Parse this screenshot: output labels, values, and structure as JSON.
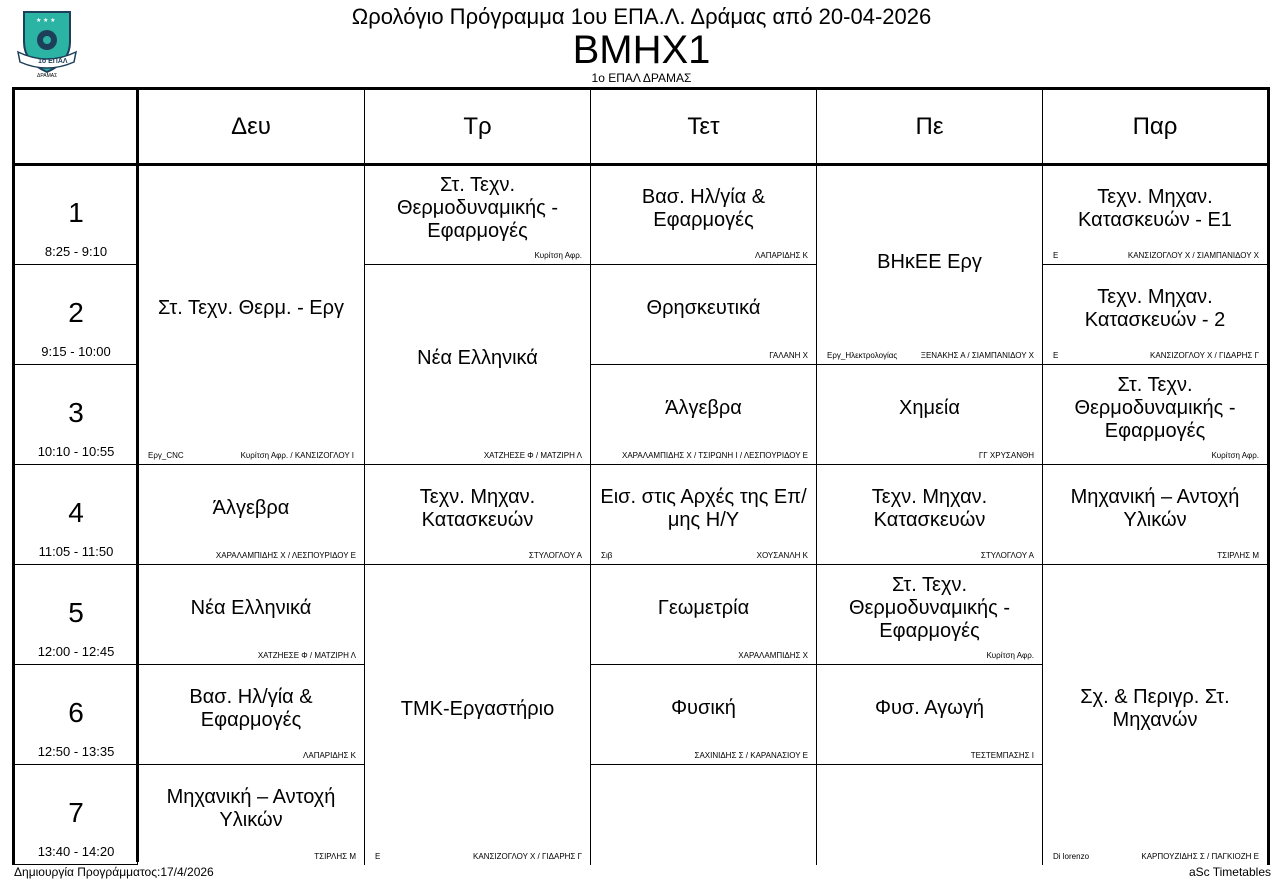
{
  "header": {
    "title": "Ωρολόγιο Πρόγραμμα 1ου ΕΠΑ.Λ. Δράμας από 20-04-2026",
    "class_name": "BMHX1",
    "school": "1ο ΕΠΑΛ ΔΡΑΜΑΣ",
    "logo_text": "1ο ΕΠΑΛ ΔΡΑΜΑΣ",
    "logo_colors": {
      "shield": "#2bb3a3",
      "dark": "#1d3f5a"
    }
  },
  "days": [
    "Δευ",
    "Τρ",
    "Τετ",
    "Πε",
    "Παρ"
  ],
  "periods": [
    {
      "num": "1",
      "time": "8:25 - 9:10"
    },
    {
      "num": "2",
      "time": "9:15 - 10:00"
    },
    {
      "num": "3",
      "time": "10:10 - 10:55"
    },
    {
      "num": "4",
      "time": "11:05 - 11:50"
    },
    {
      "num": "5",
      "time": "12:00 - 12:45"
    },
    {
      "num": "6",
      "time": "12:50 - 13:35"
    },
    {
      "num": "7",
      "time": "13:40 - 14:20"
    }
  ],
  "lessons": [
    {
      "day": 0,
      "period": 1,
      "span": 3,
      "subject": "Στ. Τεχν. Θερμ. - Εργ",
      "room": "Εργ_CNC",
      "teacher": "Κυρίτση Αφρ. / ΚΑΝΣΙΖΟΓΛΟΥ Ι"
    },
    {
      "day": 0,
      "period": 4,
      "span": 1,
      "subject": "Άλγεβρα",
      "room": "",
      "teacher": "ΧΑΡΑΛΑΜΠΙΔΗΣ Χ / ΛΕΣΠΟΥΡΙΔΟΥ Ε"
    },
    {
      "day": 0,
      "period": 5,
      "span": 1,
      "subject": "Νέα Ελληνικά",
      "room": "",
      "teacher": "ΧΑΤΖΗΕΣΕ Φ / ΜΑΤΖΙΡΗ Λ"
    },
    {
      "day": 0,
      "period": 6,
      "span": 1,
      "subject": "Βασ. Ηλ/γία & Εφαρμογές",
      "room": "",
      "teacher": "ΛΑΠΑΡΙΔΗΣ Κ"
    },
    {
      "day": 0,
      "period": 7,
      "span": 1,
      "subject": "Μηχανική – Αντοχή Υλικών",
      "room": "",
      "teacher": "ΤΣΙΡΛΗΣ Μ"
    },
    {
      "day": 1,
      "period": 1,
      "span": 1,
      "subject": "Στ. Τεχν. Θερμοδυναμικής - Εφαρμογές",
      "room": "",
      "teacher": "Κυρίτση Αφρ."
    },
    {
      "day": 1,
      "period": 2,
      "span": 2,
      "subject": "Νέα Ελληνικά",
      "room": "",
      "teacher": "ΧΑΤΖΗΕΣΕ Φ / ΜΑΤΖΙΡΗ Λ"
    },
    {
      "day": 1,
      "period": 4,
      "span": 1,
      "subject": "Τεχν. Μηχαν. Κατασκευών",
      "room": "",
      "teacher": "ΣΤΥΛΟΓΛΟΥ Α"
    },
    {
      "day": 1,
      "period": 5,
      "span": 3,
      "subject": "ΤΜΚ-Εργαστήριο",
      "room": "Ε",
      "teacher": "ΚΑΝΣΙΖΟΓΛΟΥ Χ / ΓΙΔΑΡΗΣ Γ"
    },
    {
      "day": 2,
      "period": 1,
      "span": 1,
      "subject": "Βασ. Ηλ/γία & Εφαρμογές",
      "room": "",
      "teacher": "ΛΑΠΑΡΙΔΗΣ Κ"
    },
    {
      "day": 2,
      "period": 2,
      "span": 1,
      "subject": "Θρησκευτικά",
      "room": "",
      "teacher": "ΓΑΛΑΝΗ Χ"
    },
    {
      "day": 2,
      "period": 3,
      "span": 1,
      "subject": "Άλγεβρα",
      "room": "",
      "teacher": "ΧΑΡΑΛΑΜΠΙΔΗΣ Χ / ΤΣΙΡΩΝΗ Ι / ΛΕΣΠΟΥΡΙΔΟΥ Ε"
    },
    {
      "day": 2,
      "period": 4,
      "span": 1,
      "subject": "Εισ. στις Αρχές της Επ/μης Η/Υ",
      "room": "Σιβ",
      "teacher": "ΧΟΥΣΑΝΛΗ Κ"
    },
    {
      "day": 2,
      "period": 5,
      "span": 1,
      "subject": "Γεωμετρία",
      "room": "",
      "teacher": "ΧΑΡΑΛΑΜΠΙΔΗΣ Χ"
    },
    {
      "day": 2,
      "period": 6,
      "span": 1,
      "subject": "Φυσική",
      "room": "",
      "teacher": "ΣΑΧΙΝΙΔΗΣ Σ / ΚΑΡΑΝΑΣΙΟΥ Ε"
    },
    {
      "day": 2,
      "period": 7,
      "span": 1,
      "subject": "",
      "room": "",
      "teacher": ""
    },
    {
      "day": 3,
      "period": 1,
      "span": 2,
      "subject": "ΒΗκΕΕ Εργ",
      "room": "Εργ_Ηλεκτρολογίας",
      "teacher": "ΞΕΝΑΚΗΣ Α / ΣΙΑΜΠΑΝΙΔΟΥ Χ",
      "top": true
    },
    {
      "day": 3,
      "period": 3,
      "span": 1,
      "subject": "Χημεία",
      "room": "",
      "teacher": "ΓΓ ΧΡΥΣΑΝΘΗ"
    },
    {
      "day": 3,
      "period": 4,
      "span": 1,
      "subject": "Τεχν. Μηχαν. Κατασκευών",
      "room": "",
      "teacher": "ΣΤΥΛΟΓΛΟΥ Α"
    },
    {
      "day": 3,
      "period": 5,
      "span": 1,
      "subject": "Στ. Τεχν. Θερμοδυναμικής - Εφαρμογές",
      "room": "",
      "teacher": "Κυρίτση Αφρ."
    },
    {
      "day": 3,
      "period": 6,
      "span": 1,
      "subject": "Φυσ. Αγωγή",
      "room": "",
      "teacher": "ΤΕΣΤΕΜΠΑΣΗΣ Ι"
    },
    {
      "day": 3,
      "period": 7,
      "span": 1,
      "subject": "",
      "room": "",
      "teacher": ""
    },
    {
      "day": 4,
      "period": 1,
      "span": 1,
      "subject": "Τεχν. Μηχαν. Κατασκευών - Ε1",
      "room": "Ε",
      "teacher": "ΚΑΝΣΙΖΟΓΛΟΥ Χ / ΣΙΑΜΠΑΝΙΔΟΥ Χ"
    },
    {
      "day": 4,
      "period": 2,
      "span": 1,
      "subject": "Τεχν. Μηχαν. Κατασκευών - 2",
      "room": "Ε",
      "teacher": "ΚΑΝΣΙΖΟΓΛΟΥ Χ / ΓΙΔΑΡΗΣ Γ"
    },
    {
      "day": 4,
      "period": 3,
      "span": 1,
      "subject": "Στ. Τεχν. Θερμοδυναμικής - Εφαρμογές",
      "room": "",
      "teacher": "Κυρίτση Αφρ."
    },
    {
      "day": 4,
      "period": 4,
      "span": 1,
      "subject": "Μηχανική – Αντοχή Υλικών",
      "room": "",
      "teacher": "ΤΣΙΡΛΗΣ Μ"
    },
    {
      "day": 4,
      "period": 5,
      "span": 3,
      "subject": "Σχ. &  Περιγρ. Στ. Μηχανών",
      "room": "Di lorenzo",
      "teacher": "ΚΑΡΠΟΥΖΙΔΗΣ Σ / ΠΑΓΚΙΟΖΗ Ε"
    }
  ],
  "footer": {
    "created": "Δημιουργία Προγράμματος:17/4/2026",
    "generator": "aSc Timetables"
  }
}
